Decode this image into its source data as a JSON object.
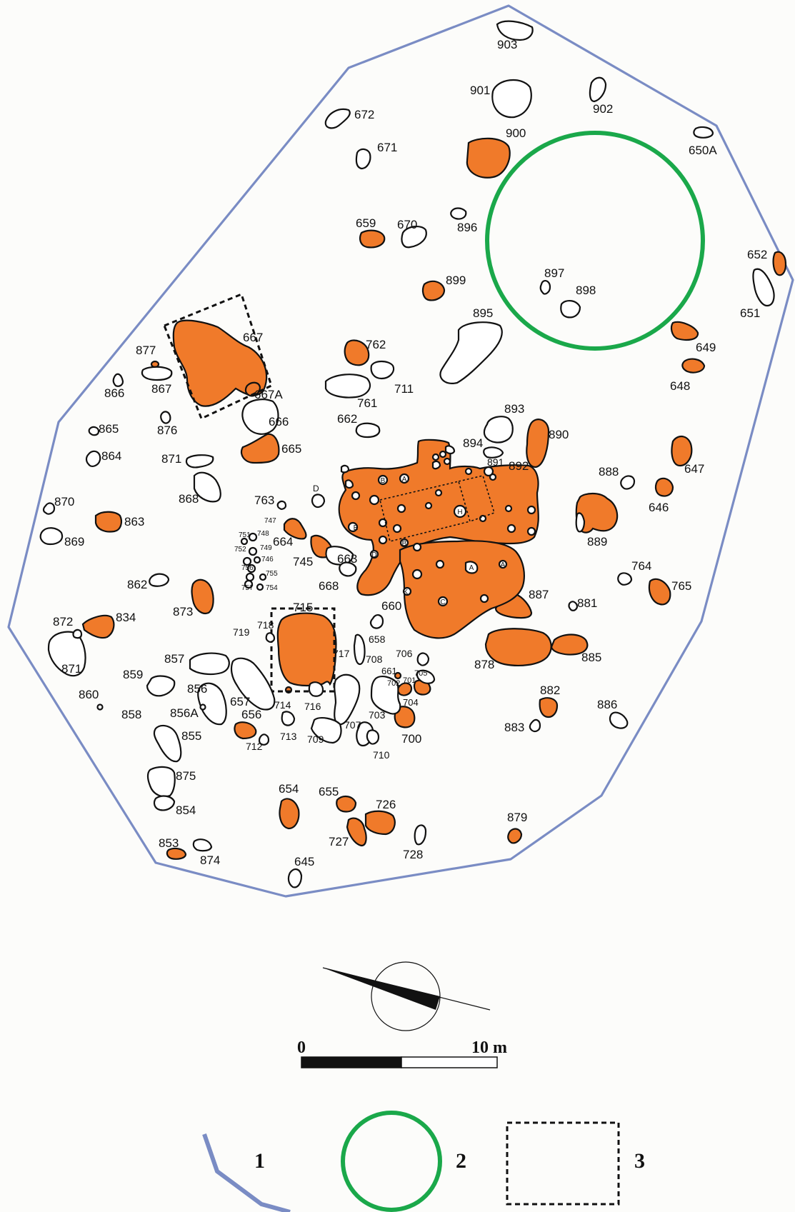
{
  "scale_bar": {
    "start_label": "0",
    "end_label": "10 m"
  },
  "legend": {
    "item1": "1",
    "item2": "2",
    "item3": "3"
  },
  "colors": {
    "boundary": "#7a8cc4",
    "circle": "#1aa84a",
    "fill": "#f07a2a"
  },
  "features": {
    "f903": "903",
    "f901": "901",
    "f902": "902",
    "f900": "900",
    "f650A": "650A",
    "f672": "672",
    "f671": "671",
    "f659": "659",
    "f670": "670",
    "f896": "896",
    "f899": "899",
    "f897": "897",
    "f898": "898",
    "f895": "895",
    "f652": "652",
    "f651": "651",
    "f649": "649",
    "f648": "648",
    "f667": "667",
    "f667A": "667A",
    "f877": "877",
    "f866": "866",
    "f867": "867",
    "f762": "762",
    "f761": "761",
    "f711": "711",
    "f893": "893",
    "f890": "890",
    "f666": "666",
    "f662": "662",
    "f876": "876",
    "f865": "865",
    "f665": "665",
    "f894": "894",
    "f891": "891",
    "f892": "892",
    "f888": "888",
    "f647": "647",
    "f864": "864",
    "f871a": "871",
    "f868": "868",
    "f763": "763",
    "fD": "D",
    "f646": "646",
    "f870": "870",
    "f863": "863",
    "f664": "664",
    "f869": "869",
    "f745": "745",
    "f663": "663",
    "f889": "889",
    "f668": "668",
    "f764": "764",
    "f862": "862",
    "f765": "765",
    "f660": "660",
    "f887": "887",
    "f881": "881",
    "f873": "873",
    "f715": "715",
    "f872": "872",
    "f834": "834",
    "f718": "718",
    "f719": "719",
    "f658": "658",
    "f706": "706",
    "f871b": "871",
    "f857": "857",
    "f717": "717",
    "f708": "708",
    "f878": "878",
    "f885": "885",
    "f661": "661",
    "f705": "705",
    "f859": "859",
    "f702": "702",
    "f701": "701",
    "f856": "856",
    "f882": "882",
    "f860": "860",
    "f657": "657",
    "f714": "714",
    "f716": "716",
    "f704": "704",
    "f886": "886",
    "f858": "858",
    "f856A": "856A",
    "f656": "656",
    "f703": "703",
    "f883": "883",
    "f713": "713",
    "f707": "707",
    "f855": "855",
    "f709": "709",
    "f700": "700",
    "f712": "712",
    "f710": "710",
    "f875": "875",
    "f654": "654",
    "f655": "655",
    "f726": "726",
    "f854": "854",
    "f879": "879",
    "f727": "727",
    "f853": "853",
    "f728": "728",
    "f874": "874",
    "f645": "645",
    "f747": "747",
    "f751": "751",
    "f748": "748",
    "f752": "752",
    "f749": "749",
    "f746": "746",
    "f756": "756",
    "f755": "755",
    "f757": "757",
    "f754": "754"
  }
}
